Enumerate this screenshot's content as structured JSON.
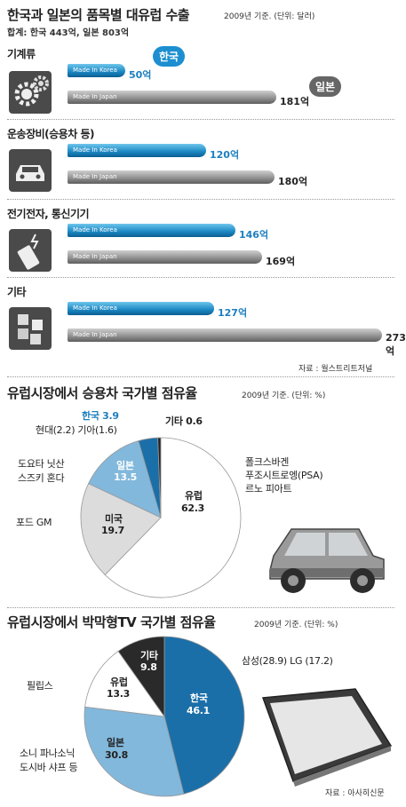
{
  "header": {
    "title": "한국과 일본의 품목별 대유럽 수출",
    "note": "2009년 기준. (단위: 달러)",
    "subtitle": "합계: 한국 443억, 일본 803억"
  },
  "exports": {
    "bar_label_kr": "Made In Korea",
    "bar_label_jp": "Made In Japan",
    "bubble_kr": "한국",
    "bubble_jp": "일본",
    "source": "자료 : 월스트리트저널",
    "categories": [
      {
        "name": "기계류",
        "kr_value": 50,
        "kr_text": "50억",
        "jp_value": 181,
        "jp_text": "181억"
      },
      {
        "name": "운송장비(승용차 등)",
        "kr_value": 120,
        "kr_text": "120억",
        "jp_value": 180,
        "jp_text": "180억"
      },
      {
        "name": "전기전자, 통신기기",
        "kr_value": 146,
        "kr_text": "146억",
        "jp_value": 169,
        "jp_text": "169억"
      },
      {
        "name": "기타",
        "kr_value": 127,
        "kr_text": "127억",
        "jp_value": 273,
        "jp_text": "273억"
      }
    ]
  },
  "car": {
    "title": "유럽시장에서 승용차 국가별 점유율",
    "note": "2009년 기준. (단위: %)",
    "labels": {
      "europe": "유럽",
      "europe_val": "62.3",
      "usa": "미국",
      "usa_val": "19.7",
      "japan": "일본",
      "japan_val": "13.5",
      "korea": "한국 3.9",
      "other": "기타 0.6",
      "korea_detail": "현대(2.2) 기아(1.6)",
      "japan_detail1": "도요타 닛산",
      "japan_detail2": "스즈키 혼다",
      "usa_detail": "포드 GM",
      "europe_detail1": "폴크스바겐",
      "europe_detail2": "푸조시트로엥(PSA)",
      "europe_detail3": "르노 피아트"
    }
  },
  "tv": {
    "title": "유럽시장에서 박막형TV 국가별 점유율",
    "note": "2009년 기준. (단위: %)",
    "source": "자료 : 아사히신문",
    "labels": {
      "korea": "한국",
      "korea_val": "46.1",
      "japan": "일본",
      "japan_val": "30.8",
      "europe": "유럽",
      "europe_val": "13.3",
      "other": "기타",
      "other_val": "9.8",
      "korea_detail": "삼성(28.9) LG (17.2)",
      "europe_detail": "필립스",
      "japan_detail1": "소니 파나소닉",
      "japan_detail2": "도시바 샤프 등"
    }
  },
  "chart_data": [
    {
      "type": "bar",
      "title": "한국과 일본의 품목별 대유럽 수출",
      "categories": [
        "기계류",
        "운송장비(승용차 등)",
        "전기전자, 통신기기",
        "기타"
      ],
      "series": [
        {
          "name": "한국",
          "values": [
            50,
            120,
            146,
            127
          ]
        },
        {
          "name": "일본",
          "values": [
            181,
            180,
            169,
            273
          ]
        }
      ]
    },
    {
      "type": "pie",
      "title": "유럽시장에서 승용차 국가별 점유율",
      "categories": [
        "유럽",
        "미국",
        "일본",
        "한국",
        "기타"
      ],
      "values": [
        62.3,
        19.7,
        13.5,
        3.9,
        0.6
      ],
      "colors": [
        "#ffffff",
        "#dcdcdc",
        "#82b8dc",
        "#1b6fa8",
        "#222222"
      ]
    },
    {
      "type": "pie",
      "title": "유럽시장에서 박막형TV 국가별 점유율",
      "categories": [
        "한국",
        "일본",
        "유럽",
        "기타"
      ],
      "values": [
        46.1,
        30.8,
        13.3,
        9.8
      ],
      "colors": [
        "#1b6fa8",
        "#82b8dc",
        "#ffffff",
        "#2a2a2a"
      ]
    }
  ]
}
